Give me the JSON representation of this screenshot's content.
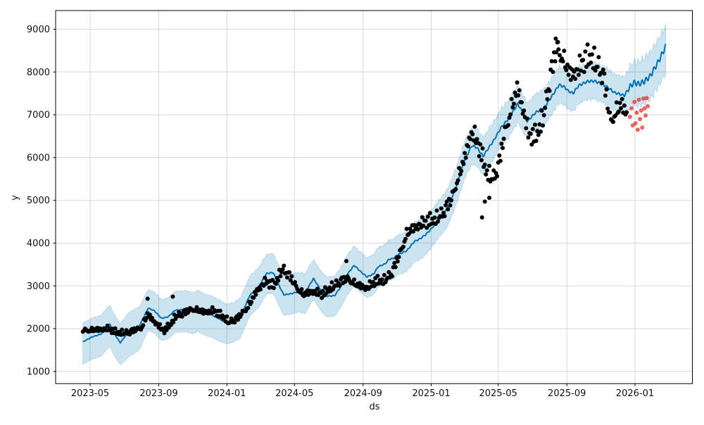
{
  "chart_data": {
    "type": "line",
    "description": "Prophet-style time series forecast: black actual scatter points, blue forecast line (yhat) with light-blue uncertainty interval, red anomaly/holdout points near the forecast horizon",
    "title": "",
    "xlabel": "ds",
    "ylabel": "y",
    "grid": true,
    "legend": "none",
    "ylim": [
      719,
      9436
    ],
    "xlim": [
      "2023-02-26",
      "2026-04-14"
    ],
    "y_ticks": [
      1000,
      2000,
      3000,
      4000,
      5000,
      6000,
      7000,
      8000,
      9000
    ],
    "x_ticks": [
      {
        "date": "2023-05-01",
        "label": "2023-05"
      },
      {
        "date": "2023-09-01",
        "label": "2023-09"
      },
      {
        "date": "2024-01-01",
        "label": "2024-01"
      },
      {
        "date": "2024-05-01",
        "label": "2024-05"
      },
      {
        "date": "2024-09-01",
        "label": "2024-09"
      },
      {
        "date": "2025-01-01",
        "label": "2025-01"
      },
      {
        "date": "2025-05-01",
        "label": "2025-05"
      },
      {
        "date": "2025-09-01",
        "label": "2025-09"
      },
      {
        "date": "2026-01-01",
        "label": "2026-01"
      }
    ],
    "colors": {
      "forecast_line": "#0072B2",
      "uncertainty_band": "#0072B2",
      "band_opacity": 0.2,
      "actual_points": "#000000",
      "anomaly_points": "#e8392f",
      "grid": "#d8d8d8",
      "axis": "#000000",
      "background": "#ffffff"
    },
    "series": [
      {
        "name": "forecast",
        "kind": "line-with-band",
        "tail_weekly_wiggle_start": "2025-12-20",
        "points": [
          [
            "2023-04-18",
            1690,
            1170,
            2130
          ],
          [
            "2023-05-05",
            1810,
            1290,
            2250
          ],
          [
            "2023-05-20",
            1870,
            1350,
            2310
          ],
          [
            "2023-06-05",
            2110,
            1590,
            2550
          ],
          [
            "2023-06-15",
            1850,
            1330,
            2290
          ],
          [
            "2023-06-24",
            1670,
            1150,
            2110
          ],
          [
            "2023-07-10",
            1950,
            1350,
            2390
          ],
          [
            "2023-07-28",
            2060,
            1500,
            2500
          ],
          [
            "2023-08-13",
            2480,
            1960,
            2920
          ],
          [
            "2023-08-24",
            2420,
            1900,
            2860
          ],
          [
            "2023-09-06",
            2240,
            1720,
            2680
          ],
          [
            "2023-09-18",
            2280,
            1760,
            2720
          ],
          [
            "2023-09-30",
            2430,
            1910,
            2870
          ],
          [
            "2023-10-19",
            2450,
            1930,
            2890
          ],
          [
            "2023-11-01",
            2400,
            1880,
            2840
          ],
          [
            "2023-11-10",
            2460,
            1940,
            2900
          ],
          [
            "2023-11-22",
            2370,
            1850,
            2810
          ],
          [
            "2023-12-05",
            2320,
            1800,
            2760
          ],
          [
            "2023-12-18",
            2230,
            1710,
            2670
          ],
          [
            "2024-01-01",
            2120,
            1640,
            2570
          ],
          [
            "2024-01-14",
            2170,
            1690,
            2620
          ],
          [
            "2024-01-25",
            2260,
            1780,
            2710
          ],
          [
            "2024-02-11",
            2780,
            2300,
            3230
          ],
          [
            "2024-02-27",
            2980,
            2500,
            3430
          ],
          [
            "2024-03-12",
            3290,
            2810,
            3740
          ],
          [
            "2024-03-24",
            3310,
            2830,
            3760
          ],
          [
            "2024-04-03",
            3020,
            2540,
            3470
          ],
          [
            "2024-04-12",
            2790,
            2310,
            3240
          ],
          [
            "2024-04-26",
            2820,
            2340,
            3270
          ],
          [
            "2024-05-08",
            2870,
            2390,
            3320
          ],
          [
            "2024-05-20",
            2840,
            2360,
            3290
          ],
          [
            "2024-06-04",
            3170,
            2690,
            3620
          ],
          [
            "2024-06-18",
            2890,
            2410,
            3340
          ],
          [
            "2024-06-27",
            2760,
            2280,
            3210
          ],
          [
            "2024-07-12",
            2770,
            2290,
            3220
          ],
          [
            "2024-07-24",
            3000,
            2520,
            3450
          ],
          [
            "2024-08-03",
            3260,
            2780,
            3710
          ],
          [
            "2024-08-16",
            3480,
            3000,
            3930
          ],
          [
            "2024-08-28",
            3330,
            2850,
            3780
          ],
          [
            "2024-09-08",
            3210,
            2730,
            3660
          ],
          [
            "2024-09-20",
            3280,
            2800,
            3730
          ],
          [
            "2024-09-28",
            3450,
            2970,
            3900
          ],
          [
            "2024-10-10",
            3510,
            3030,
            3960
          ],
          [
            "2024-10-17",
            3620,
            3140,
            4070
          ],
          [
            "2024-10-25",
            3640,
            3160,
            4090
          ],
          [
            "2024-11-02",
            3730,
            3250,
            4180
          ],
          [
            "2024-11-18",
            3820,
            3340,
            4270
          ],
          [
            "2024-12-02",
            4040,
            3560,
            4490
          ],
          [
            "2024-12-12",
            4100,
            3620,
            4550
          ],
          [
            "2024-12-22",
            4200,
            3720,
            4650
          ],
          [
            "2025-01-01",
            4330,
            3900,
            4770
          ],
          [
            "2025-01-13",
            4530,
            4100,
            4970
          ],
          [
            "2025-01-30",
            4810,
            4380,
            5250
          ],
          [
            "2025-02-08",
            5100,
            4670,
            5540
          ],
          [
            "2025-02-18",
            5450,
            5020,
            5890
          ],
          [
            "2025-03-02",
            5950,
            5520,
            6390
          ],
          [
            "2025-03-15",
            6280,
            5850,
            6720
          ],
          [
            "2025-03-24",
            6230,
            5800,
            6670
          ],
          [
            "2025-04-04",
            6030,
            5600,
            6470
          ],
          [
            "2025-04-15",
            6250,
            5820,
            6690
          ],
          [
            "2025-04-23",
            6400,
            5970,
            6840
          ],
          [
            "2025-05-06",
            6700,
            6270,
            7140
          ],
          [
            "2025-05-21",
            6930,
            6500,
            7370
          ],
          [
            "2025-06-05",
            7260,
            6830,
            7700
          ],
          [
            "2025-06-22",
            6850,
            6430,
            7280
          ],
          [
            "2025-07-07",
            7050,
            6630,
            7480
          ],
          [
            "2025-07-23",
            7180,
            6760,
            7610
          ],
          [
            "2025-08-05",
            7430,
            7010,
            7860
          ],
          [
            "2025-08-18",
            7700,
            7280,
            8130
          ],
          [
            "2025-08-28",
            7650,
            7230,
            8080
          ],
          [
            "2025-09-03",
            7560,
            7140,
            7990
          ],
          [
            "2025-09-12",
            7500,
            7080,
            7930
          ],
          [
            "2025-09-22",
            7680,
            7260,
            8110
          ],
          [
            "2025-10-08",
            7780,
            7360,
            8210
          ],
          [
            "2025-10-20",
            7790,
            7370,
            8220
          ],
          [
            "2025-10-30",
            7740,
            7320,
            8170
          ],
          [
            "2025-11-12",
            7650,
            7230,
            8080
          ],
          [
            "2025-11-25",
            7520,
            7100,
            7950
          ],
          [
            "2025-12-13",
            7450,
            7030,
            7880
          ],
          [
            "2025-12-22",
            7640,
            7170,
            8110
          ],
          [
            "2025-12-30",
            7750,
            7260,
            8250
          ],
          [
            "2026-01-08",
            7720,
            7220,
            8240
          ],
          [
            "2026-01-18",
            7780,
            7260,
            8330
          ],
          [
            "2026-01-28",
            7900,
            7360,
            8460
          ],
          [
            "2026-02-08",
            8150,
            7580,
            8690
          ],
          [
            "2026-02-16",
            8350,
            7750,
            8860
          ],
          [
            "2026-02-25",
            8600,
            7980,
            9070
          ]
        ]
      },
      {
        "name": "actuals",
        "kind": "scatter",
        "sample_interval_days": 2,
        "noise_scale": [
          0.026,
          0.02
        ],
        "last_date": "2025-12-18",
        "trend": [
          [
            "2023-04-18",
            1950
          ],
          [
            "2023-05-10",
            1960
          ],
          [
            "2023-06-01",
            2000
          ],
          [
            "2023-06-20",
            1900
          ],
          [
            "2023-07-10",
            1910
          ],
          [
            "2023-08-01",
            2010
          ],
          [
            "2023-08-12",
            2320
          ],
          [
            "2023-08-25",
            2150
          ],
          [
            "2023-09-10",
            1940
          ],
          [
            "2023-09-22",
            2100
          ],
          [
            "2023-10-02",
            2300
          ],
          [
            "2023-10-15",
            2350
          ],
          [
            "2023-11-01",
            2450
          ],
          [
            "2023-11-20",
            2380
          ],
          [
            "2023-12-08",
            2420
          ],
          [
            "2023-12-25",
            2280
          ],
          [
            "2024-01-05",
            2150
          ],
          [
            "2024-01-20",
            2230
          ],
          [
            "2024-02-08",
            2500
          ],
          [
            "2024-02-25",
            2900
          ],
          [
            "2024-03-10",
            3100
          ],
          [
            "2024-03-25",
            3000
          ],
          [
            "2024-04-10",
            3400
          ],
          [
            "2024-04-22",
            3220
          ],
          [
            "2024-05-05",
            2950
          ],
          [
            "2024-05-18",
            2780
          ],
          [
            "2024-06-02",
            2870
          ],
          [
            "2024-06-20",
            2800
          ],
          [
            "2024-07-05",
            2950
          ],
          [
            "2024-07-20",
            3080
          ],
          [
            "2024-08-05",
            3150
          ],
          [
            "2024-08-22",
            3000
          ],
          [
            "2024-09-08",
            2950
          ],
          [
            "2024-09-22",
            3100
          ],
          [
            "2024-10-08",
            3120
          ],
          [
            "2024-10-22",
            3280
          ],
          [
            "2024-11-05",
            3700
          ],
          [
            "2024-11-18",
            4200
          ],
          [
            "2024-12-05",
            4380
          ],
          [
            "2024-12-20",
            4480
          ],
          [
            "2025-01-08",
            4550
          ],
          [
            "2025-01-22",
            4700
          ],
          [
            "2025-02-05",
            4950
          ],
          [
            "2025-02-18",
            5500
          ],
          [
            "2025-03-02",
            5950
          ],
          [
            "2025-03-12",
            6550
          ],
          [
            "2025-03-20",
            6500
          ],
          [
            "2025-03-30",
            6150
          ],
          [
            "2025-04-10",
            5650
          ],
          [
            "2025-04-22",
            5500
          ],
          [
            "2025-05-02",
            5800
          ],
          [
            "2025-05-12",
            6500
          ],
          [
            "2025-05-24",
            7100
          ],
          [
            "2025-06-05",
            7600
          ],
          [
            "2025-06-15",
            7100
          ],
          [
            "2025-06-25",
            6500
          ],
          [
            "2025-07-08",
            6500
          ],
          [
            "2025-07-20",
            6900
          ],
          [
            "2025-08-03",
            7900
          ],
          [
            "2025-08-14",
            8500
          ],
          [
            "2025-08-25",
            8300
          ],
          [
            "2025-09-06",
            7900
          ],
          [
            "2025-09-18",
            8000
          ],
          [
            "2025-10-02",
            8250
          ],
          [
            "2025-10-14",
            8350
          ],
          [
            "2025-10-26",
            8150
          ],
          [
            "2025-11-05",
            7900
          ],
          [
            "2025-11-12",
            7300
          ],
          [
            "2025-11-18",
            6800
          ],
          [
            "2025-11-28",
            7050
          ],
          [
            "2025-12-08",
            7200
          ],
          [
            "2025-12-18",
            7000
          ]
        ],
        "outliers": [
          [
            "2023-08-12",
            2700
          ],
          [
            "2023-09-26",
            2750
          ],
          [
            "2024-08-02",
            3580
          ],
          [
            "2025-04-02",
            4600
          ],
          [
            "2025-04-07",
            4970
          ],
          [
            "2025-04-15",
            5060
          ],
          [
            "2025-08-12",
            8780
          ],
          [
            "2025-08-16",
            8700
          ]
        ]
      },
      {
        "name": "anomalies",
        "kind": "scatter",
        "points": [
          [
            "2025-12-23",
            6950
          ],
          [
            "2025-12-26",
            7150
          ],
          [
            "2025-12-28",
            6750
          ],
          [
            "2025-12-31",
            7300
          ],
          [
            "2026-01-02",
            6800
          ],
          [
            "2026-01-04",
            7050
          ],
          [
            "2026-01-06",
            6650
          ],
          [
            "2026-01-08",
            7350
          ],
          [
            "2026-01-10",
            6900
          ],
          [
            "2026-01-12",
            7100
          ],
          [
            "2026-01-14",
            6700
          ],
          [
            "2026-01-16",
            7380
          ],
          [
            "2026-01-18",
            7150
          ],
          [
            "2026-01-20",
            6980
          ],
          [
            "2026-01-22",
            7390
          ],
          [
            "2026-01-24",
            7200
          ]
        ]
      }
    ],
    "noise": [
      0.12,
      -0.45,
      0.78,
      -0.23,
      0.55,
      -0.89,
      0.34,
      -0.67,
      0.91,
      0.05,
      -0.38,
      0.62,
      -0.81,
      0.27,
      -0.14,
      0.73,
      -0.52,
      0.41,
      -0.95,
      0.18,
      0.66,
      -0.29,
      0.84,
      -0.6,
      0.08,
      0.49,
      -0.76,
      0.31,
      -0.1,
      0.88,
      -0.42,
      0.57,
      -0.7,
      0.22,
      -0.33,
      0.95,
      -0.16,
      0.44,
      -0.58,
      0.7,
      -0.26,
      0.37,
      -0.86,
      0.15,
      0.6,
      -0.48,
      0.8
    ]
  }
}
